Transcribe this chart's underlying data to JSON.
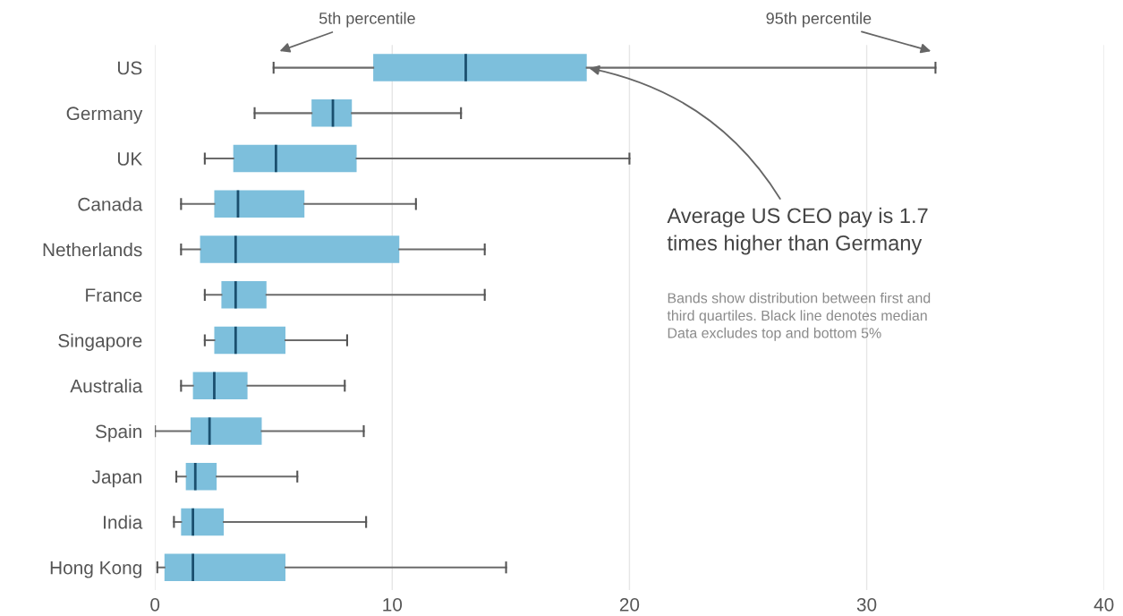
{
  "chart_data": {
    "type": "box",
    "orientation": "horizontal",
    "categories": [
      "US",
      "Germany",
      "UK",
      "Canada",
      "Netherlands",
      "France",
      "Singapore",
      "Australia",
      "Spain",
      "Japan",
      "India",
      "Hong Kong"
    ],
    "series": [
      {
        "color": "#7dbfdc",
        "boxes": [
          {
            "low": 5.0,
            "q1": 9.2,
            "median": 13.1,
            "q3": 18.2,
            "high": 32.9
          },
          {
            "low": 4.2,
            "q1": 6.6,
            "median": 7.5,
            "q3": 8.3,
            "high": 12.9
          },
          {
            "low": 2.1,
            "q1": 3.3,
            "median": 5.1,
            "q3": 8.5,
            "high": 20.0
          },
          {
            "low": 1.1,
            "q1": 2.5,
            "median": 3.5,
            "q3": 6.3,
            "high": 11.0
          },
          {
            "low": 1.1,
            "q1": 1.9,
            "median": 3.4,
            "q3": 10.3,
            "high": 13.9
          },
          {
            "low": 2.1,
            "q1": 2.8,
            "median": 3.4,
            "q3": 4.7,
            "high": 13.9
          },
          {
            "low": 2.1,
            "q1": 2.5,
            "median": 3.4,
            "q3": 5.5,
            "high": 8.1
          },
          {
            "low": 1.1,
            "q1": 1.6,
            "median": 2.5,
            "q3": 3.9,
            "high": 8.0
          },
          {
            "low": 0.0,
            "q1": 1.5,
            "median": 2.3,
            "q3": 4.5,
            "high": 8.8
          },
          {
            "low": 0.9,
            "q1": 1.3,
            "median": 1.7,
            "q3": 2.6,
            "high": 6.0
          },
          {
            "low": 0.8,
            "q1": 1.1,
            "median": 1.6,
            "q3": 2.9,
            "high": 8.9
          },
          {
            "low": 0.1,
            "q1": 0.4,
            "median": 1.6,
            "q3": 5.5,
            "high": 14.8
          }
        ]
      }
    ],
    "xlim": [
      0,
      40
    ],
    "xticks": [
      0,
      10,
      20,
      30,
      40
    ],
    "grid": "x",
    "annotations": [
      "5th percentile",
      "95th percentile",
      {
        "text": "Average US CEO pay is 1.7\ntimes higher than Germany",
        "x": 18.2,
        "y": "US"
      },
      "Bands show distribution between first and\nthird quartiles. Black line denotes median\nData excludes top and bottom 5%"
    ]
  }
}
